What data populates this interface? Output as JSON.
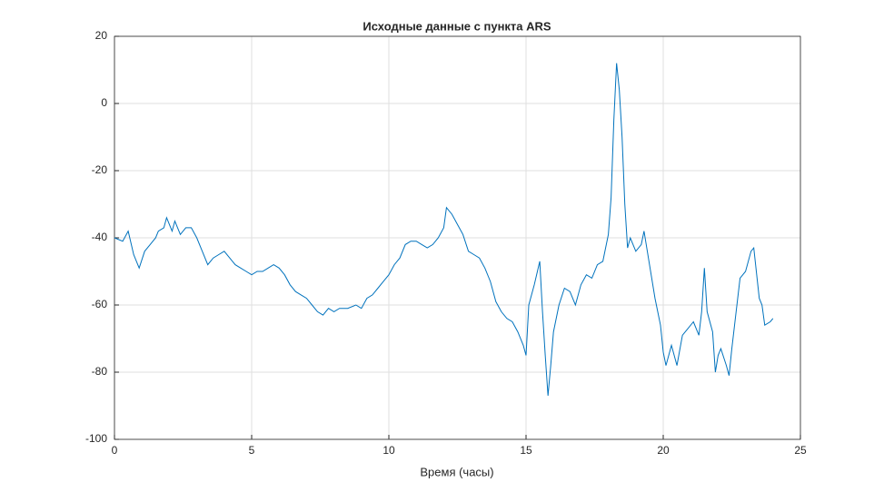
{
  "chart_data": {
    "type": "line",
    "title": "Исходные данные с пункта ARS",
    "xlabel": "Время (часы)",
    "x": [
      0,
      0.3,
      0.5,
      0.7,
      0.9,
      1.1,
      1.3,
      1.5,
      1.6,
      1.8,
      1.9,
      2.1,
      2.2,
      2.4,
      2.6,
      2.8,
      3.0,
      3.2,
      3.4,
      3.6,
      3.8,
      4.0,
      4.2,
      4.4,
      4.6,
      4.8,
      5.0,
      5.2,
      5.4,
      5.6,
      5.8,
      6.0,
      6.2,
      6.4,
      6.6,
      6.8,
      7.0,
      7.2,
      7.4,
      7.6,
      7.8,
      8.0,
      8.2,
      8.5,
      8.8,
      9.0,
      9.2,
      9.4,
      9.6,
      9.8,
      10.0,
      10.2,
      10.4,
      10.6,
      10.8,
      11.0,
      11.2,
      11.4,
      11.6,
      11.8,
      12.0,
      12.1,
      12.3,
      12.5,
      12.7,
      12.9,
      13.1,
      13.3,
      13.5,
      13.7,
      13.9,
      14.1,
      14.3,
      14.5,
      14.7,
      14.9,
      15.0,
      15.1,
      15.3,
      15.5,
      15.6,
      15.7,
      15.8,
      15.9,
      16.0,
      16.2,
      16.4,
      16.6,
      16.8,
      17.0,
      17.2,
      17.4,
      17.6,
      17.8,
      18.0,
      18.1,
      18.2,
      18.3,
      18.4,
      18.5,
      18.6,
      18.7,
      18.8,
      19.0,
      19.2,
      19.3,
      19.5,
      19.7,
      19.9,
      20.0,
      20.1,
      20.3,
      20.5,
      20.7,
      20.9,
      21.1,
      21.3,
      21.4,
      21.5,
      21.6,
      21.8,
      21.9,
      22.0,
      22.1,
      22.3,
      22.4,
      22.5,
      22.6,
      22.8,
      23.0,
      23.2,
      23.3,
      23.5,
      23.6,
      23.7,
      23.9,
      24.0
    ],
    "values": [
      -40,
      -41,
      -38,
      -45,
      -49,
      -44,
      -42,
      -40,
      -38,
      -37,
      -34,
      -38,
      -35,
      -39,
      -37,
      -37,
      -40,
      -44,
      -48,
      -46,
      -45,
      -44,
      -46,
      -48,
      -49,
      -50,
      -51,
      -50,
      -50,
      -49,
      -48,
      -49,
      -51,
      -54,
      -56,
      -57,
      -58,
      -60,
      -62,
      -63,
      -61,
      -62,
      -61,
      -61,
      -60,
      -61,
      -58,
      -57,
      -55,
      -53,
      -51,
      -48,
      -46,
      -42,
      -41,
      -41,
      -42,
      -43,
      -42,
      -40,
      -37,
      -31,
      -33,
      -36,
      -39,
      -44,
      -45,
      -46,
      -49,
      -53,
      -59,
      -62,
      -64,
      -65,
      -68,
      -72,
      -75,
      -60,
      -54,
      -47,
      -62,
      -75,
      -87,
      -78,
      -68,
      -60,
      -55,
      -56,
      -60,
      -54,
      -51,
      -52,
      -48,
      -47,
      -39,
      -28,
      -5,
      12,
      4,
      -10,
      -30,
      -43,
      -40,
      -44,
      -42,
      -38,
      -48,
      -58,
      -66,
      -74,
      -78,
      -72,
      -78,
      -69,
      -67,
      -65,
      -69,
      -62,
      -49,
      -62,
      -68,
      -80,
      -75,
      -73,
      -78,
      -81,
      -73,
      -66,
      -52,
      -50,
      -44,
      -43,
      -58,
      -60,
      -66,
      -65,
      -64
    ],
    "color": "#0072bd",
    "xlim": [
      0,
      25
    ],
    "ylim": [
      -100,
      20
    ],
    "xticks": [
      0,
      5,
      10,
      15,
      20,
      25
    ],
    "yticks": [
      -100,
      -80,
      -60,
      -40,
      -20,
      0,
      20
    ],
    "grid": true
  }
}
